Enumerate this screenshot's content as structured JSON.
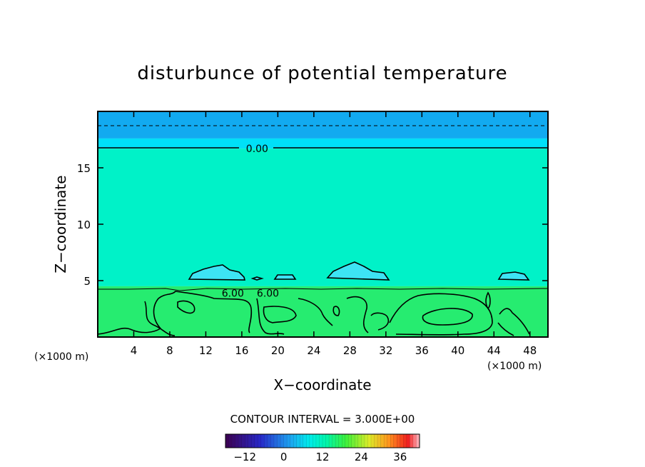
{
  "chart_data": {
    "type": "heatmap",
    "title": "disturbunce of potential temperature",
    "xlabel": "X−coordinate",
    "ylabel": "Z−coordinate",
    "x_unit": "(×1000 m)",
    "x_unit_right": "(×1000 m)",
    "xlim": [
      0,
      50
    ],
    "ylim": [
      0,
      20
    ],
    "x_ticks": [
      4,
      8,
      12,
      16,
      20,
      24,
      28,
      32,
      36,
      40,
      44,
      48
    ],
    "x_tick_labels": [
      "4",
      "8",
      "12",
      "16",
      "20",
      "24",
      "28",
      "32",
      "36",
      "40",
      "44",
      "48"
    ],
    "y_ticks": [
      5,
      10,
      15
    ],
    "y_tick_labels": [
      "5",
      "10",
      "15"
    ],
    "contour_interval_text": "CONTOUR INTERVAL = 3.000E+00",
    "contour_labels": [
      {
        "text": "0.00",
        "x": 17.7,
        "y": 16.7
      },
      {
        "text": "6.00",
        "x": 15.0,
        "y": 3.9
      },
      {
        "text": "6.00",
        "x": 18.9,
        "y": 3.9
      }
    ],
    "field_layers": [
      {
        "z_from": 17.6,
        "z_to": 20.0,
        "value": -6,
        "color": "#12aaf0"
      },
      {
        "z_from": 16.7,
        "z_to": 17.6,
        "value": -3,
        "color": "#00e0f8"
      },
      {
        "z_from": 4.5,
        "z_to": 16.7,
        "value": 3,
        "color": "#00f2c8"
      },
      {
        "z_from": 0.0,
        "z_to": 4.5,
        "value": 9,
        "color": "#26ec70"
      }
    ],
    "colorbar": {
      "min": -18,
      "max": 42,
      "ticks": [
        -12,
        0,
        12,
        24,
        36
      ],
      "tick_labels": [
        "−12",
        "0",
        "12",
        "24",
        "36"
      ]
    },
    "colors": {
      "axes": "#000000",
      "background": "#ffffff"
    }
  }
}
